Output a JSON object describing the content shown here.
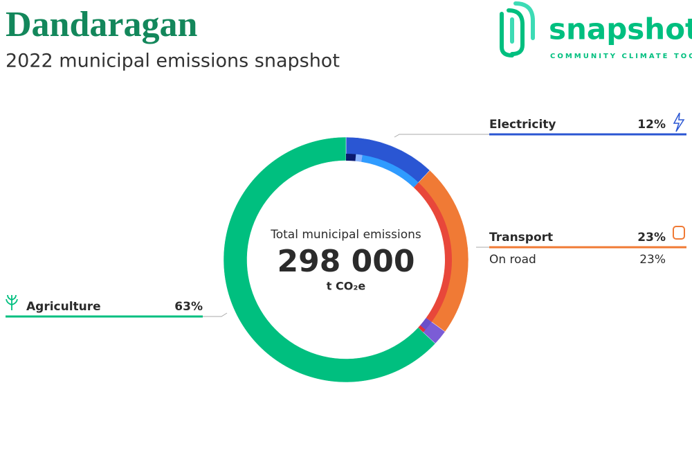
{
  "chart_data": {
    "type": "donut",
    "title": "Dandaragan",
    "subtitle": "2022 municipal emissions snapshot",
    "logo": {
      "name": "snapshot",
      "tagline": "COMMUNITY CLIMATE TOOL"
    },
    "center_label": "Total municipal emissions",
    "total": "298 000",
    "unit": "t CO₂e",
    "categories": [
      "Electricity",
      "Transport",
      null,
      "Agriculture"
    ],
    "values": [
      12,
      23,
      2,
      63
    ],
    "value_labels": [
      "12%",
      "23%",
      null,
      "63%"
    ],
    "colors": [
      "#2a56d3",
      "#f07a35",
      "#7b5cd6",
      "#00bf7f"
    ],
    "subcategories": [
      null,
      null,
      null,
      "On road",
      null,
      null
    ],
    "subvalues": [
      1.5,
      1,
      9.5,
      23,
      1.5,
      0.5
    ],
    "subvalue_labels": [
      null,
      null,
      null,
      "23%",
      null,
      null
    ],
    "subcolors": [
      "#0b1a6e",
      "#8ab4ff",
      "#2f9bff",
      "#e8473a",
      "#6a4fc9",
      "#e0313b"
    ]
  }
}
